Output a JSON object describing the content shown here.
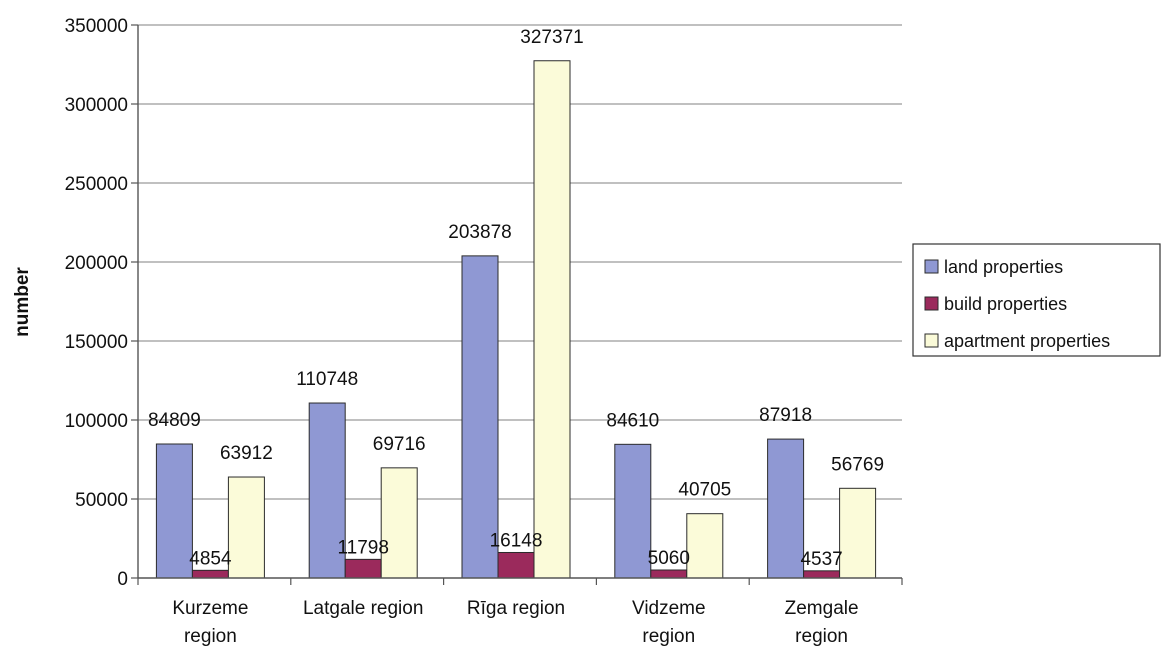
{
  "chart_data": {
    "type": "bar",
    "title": "",
    "xlabel": "",
    "ylabel": "number",
    "ylim": [
      0,
      350000
    ],
    "yticks": [
      0,
      50000,
      100000,
      150000,
      200000,
      250000,
      300000,
      350000
    ],
    "grid": true,
    "legend_position": "right",
    "categories": [
      [
        "Kurzeme",
        "region"
      ],
      [
        "Latgale region"
      ],
      [
        "Rīga region"
      ],
      [
        "Vidzeme",
        "region"
      ],
      [
        "Zemgale",
        "region"
      ]
    ],
    "series": [
      {
        "name": "land properties",
        "color": "#8f98d3",
        "values": [
          84809,
          110748,
          203878,
          84610,
          87918
        ]
      },
      {
        "name": "build properties",
        "color": "#9b2a5c",
        "values": [
          4854,
          11798,
          16148,
          5060,
          4537
        ]
      },
      {
        "name": "apartment properties",
        "color": "#fbfbd9",
        "values": [
          63912,
          69716,
          327371,
          40705,
          56769
        ]
      }
    ]
  }
}
